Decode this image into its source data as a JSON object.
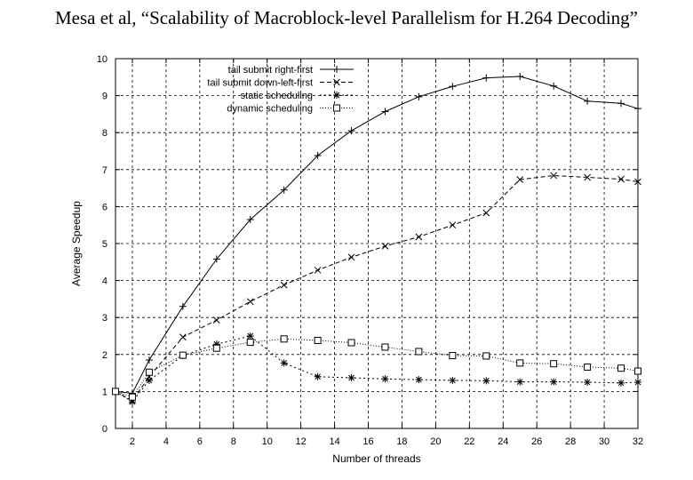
{
  "slide": {
    "title": "Mesa et al, “Scalability of Macroblock-level Parallelism for H.264 Decoding”"
  },
  "chart_data": {
    "type": "line",
    "title": "",
    "xlabel": "Number of threads",
    "ylabel": "Average Speedup",
    "xlim": [
      1,
      32
    ],
    "ylim": [
      0,
      10
    ],
    "xticks": [
      2,
      4,
      6,
      8,
      10,
      12,
      14,
      16,
      18,
      20,
      22,
      24,
      26,
      28,
      30,
      32
    ],
    "yticks": [
      0,
      1,
      2,
      3,
      4,
      5,
      6,
      7,
      8,
      9,
      10
    ],
    "grid": true,
    "legend_position": "top-left",
    "series": [
      {
        "name": "tail submit right-first",
        "marker": "plus",
        "dash": "solid",
        "x": [
          1,
          2,
          3,
          5,
          7,
          9,
          11,
          13,
          15,
          17,
          19,
          21,
          23,
          25,
          27,
          29,
          31,
          32
        ],
        "y": [
          1.0,
          0.95,
          1.85,
          3.3,
          4.58,
          5.65,
          6.45,
          7.38,
          8.05,
          8.57,
          8.97,
          9.25,
          9.48,
          9.52,
          9.26,
          8.85,
          8.79,
          8.65
        ]
      },
      {
        "name": "tail submit down-left-first",
        "marker": "x",
        "dash": "dashed",
        "x": [
          1,
          2,
          3,
          5,
          7,
          9,
          11,
          13,
          15,
          17,
          19,
          21,
          23,
          25,
          27,
          29,
          31,
          32
        ],
        "y": [
          1.0,
          0.75,
          1.4,
          2.47,
          2.93,
          3.43,
          3.88,
          4.28,
          4.63,
          4.93,
          5.18,
          5.5,
          5.83,
          6.73,
          6.84,
          6.79,
          6.74,
          6.67
        ]
      },
      {
        "name": "static scheduling",
        "marker": "asterisk",
        "dash": "dotted",
        "x": [
          1,
          2,
          3,
          5,
          7,
          9,
          11,
          13,
          15,
          17,
          19,
          21,
          23,
          25,
          27,
          29,
          31,
          32
        ],
        "y": [
          1.0,
          0.72,
          1.3,
          1.97,
          2.28,
          2.5,
          1.77,
          1.4,
          1.37,
          1.34,
          1.32,
          1.3,
          1.29,
          1.26,
          1.26,
          1.25,
          1.23,
          1.25
        ]
      },
      {
        "name": "dynamic scheduling",
        "marker": "square",
        "dash": "densedot",
        "x": [
          1,
          2,
          3,
          5,
          7,
          9,
          11,
          13,
          15,
          17,
          19,
          21,
          23,
          25,
          27,
          29,
          31,
          32
        ],
        "y": [
          1.0,
          0.85,
          1.52,
          1.98,
          2.17,
          2.33,
          2.42,
          2.38,
          2.32,
          2.2,
          2.08,
          1.97,
          1.96,
          1.77,
          1.75,
          1.66,
          1.63,
          1.55
        ]
      }
    ]
  }
}
